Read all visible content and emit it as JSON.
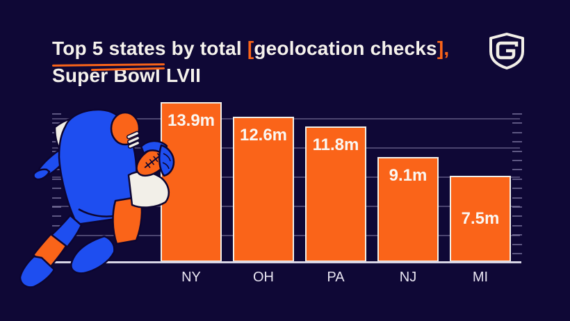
{
  "header": {
    "title_line1": {
      "underlined": "Top 5 states",
      "middle": " by total ",
      "bracket_open": "[",
      "bracketed": "geolocation checks",
      "bracket_close": "],"
    },
    "title_line2": "Super Bowl LVII",
    "logo_name": "geocomply-shield-logo"
  },
  "colors": {
    "background": "#0F0836",
    "accent_orange": "#FA6419",
    "player_blue": "#1E4EF0",
    "off_white": "#F2EFE8",
    "gridline": "#96919C",
    "baseline": "#D8D5E5"
  },
  "illustration": {
    "name": "running-football-player",
    "description": "stylized football player running with ball",
    "palette": [
      "#FA6419",
      "#1E4EF0",
      "#F2EFE8"
    ]
  },
  "chart_data": {
    "type": "bar",
    "title": "Top 5 states by total [geolocation checks], Super Bowl LVII",
    "categories": [
      "NY",
      "OH",
      "PA",
      "NJ",
      "MI"
    ],
    "values": [
      13.9,
      12.6,
      11.8,
      9.1,
      7.5
    ],
    "value_labels": [
      "13.9m",
      "12.6m",
      "11.8m",
      "9.1m",
      "7.5m"
    ],
    "unit": "m",
    "xlabel": "",
    "ylabel": "",
    "ylim": [
      0,
      14
    ],
    "grid": "horizontal",
    "legend": "none",
    "bar_color": "#FA6419",
    "bar_border_color": "#F2EFE8"
  }
}
